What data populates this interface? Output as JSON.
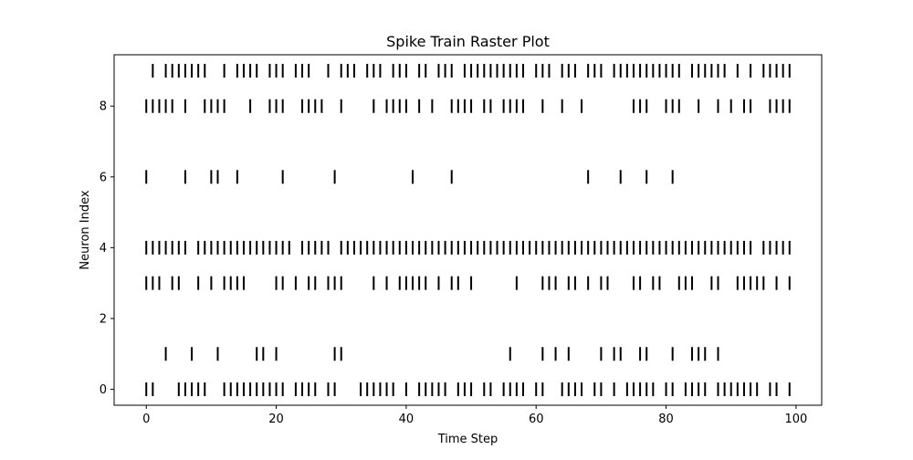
{
  "chart_data": {
    "type": "scatter",
    "marker": "vertical-line",
    "title": "Spike Train Raster Plot",
    "xlabel": "Time Step",
    "ylabel": "Neuron Index",
    "xlim": [
      -4.95,
      103.95
    ],
    "ylim": [
      -0.45,
      9.45
    ],
    "x_ticks": [
      0,
      20,
      40,
      60,
      80,
      100
    ],
    "x_tick_labels": [
      "0",
      "20",
      "40",
      "60",
      "80",
      "100"
    ],
    "y_ticks": [
      0,
      2,
      4,
      6,
      8
    ],
    "y_tick_labels": [
      "0",
      "2",
      "4",
      "6",
      "8"
    ],
    "grid": false,
    "colors": {
      "spike": "#000000",
      "axes": "#000000",
      "background": "#ffffff"
    },
    "series": [
      {
        "neuron": 0,
        "spike_times": [
          0,
          1,
          5,
          6,
          7,
          8,
          9,
          12,
          13,
          14,
          15,
          16,
          17,
          18,
          19,
          20,
          21,
          23,
          24,
          25,
          26,
          28,
          29,
          33,
          34,
          35,
          36,
          37,
          38,
          40,
          42,
          43,
          44,
          45,
          46,
          48,
          49,
          50,
          52,
          53,
          55,
          56,
          57,
          58,
          60,
          61,
          64,
          65,
          66,
          67,
          69,
          70,
          72,
          74,
          75,
          76,
          77,
          78,
          80,
          81,
          83,
          84,
          85,
          86,
          88,
          89,
          90,
          91,
          92,
          93,
          94,
          96,
          97,
          99
        ]
      },
      {
        "neuron": 1,
        "spike_times": [
          3,
          7,
          11,
          17,
          18,
          20,
          29,
          30,
          56,
          61,
          63,
          65,
          70,
          72,
          73,
          76,
          77,
          81,
          84,
          85,
          86,
          88
        ]
      },
      {
        "neuron": 3,
        "spike_times": [
          0,
          1,
          2,
          4,
          5,
          8,
          10,
          12,
          13,
          14,
          15,
          20,
          21,
          23,
          25,
          26,
          28,
          29,
          30,
          35,
          37,
          39,
          40,
          41,
          42,
          43,
          45,
          47,
          48,
          50,
          57,
          61,
          62,
          63,
          65,
          66,
          68,
          70,
          71,
          75,
          76,
          78,
          79,
          82,
          83,
          84,
          87,
          88,
          91,
          92,
          93,
          94,
          95,
          97,
          99
        ]
      },
      {
        "neuron": 4,
        "spike_times": [
          0,
          1,
          2,
          3,
          4,
          5,
          6,
          8,
          9,
          10,
          11,
          12,
          13,
          14,
          15,
          16,
          17,
          18,
          19,
          20,
          21,
          22,
          24,
          25,
          26,
          27,
          28,
          30,
          31,
          32,
          33,
          34,
          35,
          36,
          37,
          38,
          39,
          40,
          41,
          42,
          43,
          44,
          45,
          46,
          47,
          48,
          49,
          50,
          51,
          52,
          53,
          54,
          55,
          56,
          57,
          58,
          59,
          60,
          61,
          62,
          63,
          64,
          65,
          66,
          67,
          68,
          69,
          70,
          71,
          72,
          73,
          74,
          75,
          76,
          77,
          78,
          79,
          80,
          81,
          82,
          83,
          84,
          85,
          86,
          87,
          88,
          89,
          90,
          91,
          92,
          93,
          95,
          96,
          97,
          98,
          99
        ]
      },
      {
        "neuron": 6,
        "spike_times": [
          0,
          6,
          10,
          11,
          14,
          21,
          29,
          41,
          47,
          68,
          73,
          77,
          81
        ]
      },
      {
        "neuron": 8,
        "spike_times": [
          0,
          1,
          2,
          3,
          4,
          6,
          9,
          10,
          11,
          12,
          16,
          19,
          20,
          21,
          24,
          25,
          26,
          27,
          30,
          35,
          37,
          38,
          39,
          40,
          42,
          44,
          47,
          48,
          49,
          50,
          52,
          53,
          55,
          56,
          57,
          58,
          61,
          64,
          67,
          75,
          76,
          77,
          80,
          81,
          82,
          85,
          88,
          90,
          92,
          93,
          96,
          97,
          98,
          99
        ]
      },
      {
        "neuron": 9,
        "spike_times": [
          1,
          3,
          4,
          5,
          6,
          7,
          8,
          9,
          12,
          14,
          15,
          16,
          17,
          19,
          20,
          21,
          23,
          24,
          25,
          28,
          30,
          31,
          32,
          34,
          35,
          36,
          38,
          39,
          40,
          42,
          43,
          45,
          46,
          47,
          49,
          50,
          51,
          52,
          53,
          54,
          55,
          56,
          57,
          58,
          60,
          61,
          62,
          64,
          65,
          66,
          68,
          69,
          70,
          72,
          73,
          74,
          75,
          76,
          77,
          78,
          79,
          80,
          81,
          82,
          84,
          85,
          86,
          87,
          88,
          89,
          91,
          93,
          95,
          96,
          97,
          98,
          99
        ]
      }
    ]
  }
}
